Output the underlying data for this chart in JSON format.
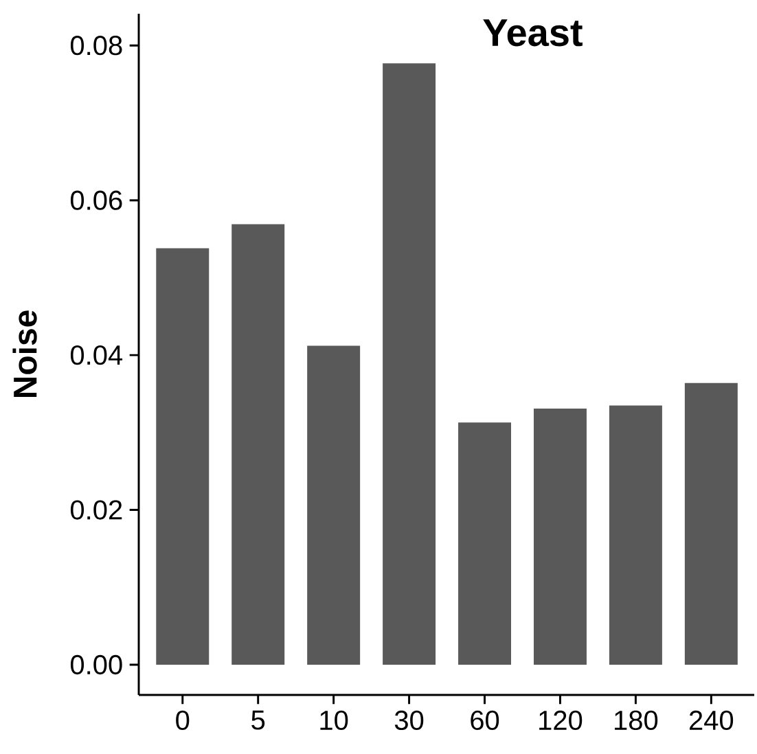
{
  "chart_data": {
    "type": "bar",
    "title": "Yeast",
    "ylabel": "Noise",
    "categories": [
      "0",
      "5",
      "10",
      "30",
      "60",
      "120",
      "180",
      "240"
    ],
    "values": [
      0.0538,
      0.0569,
      0.0412,
      0.0777,
      0.0313,
      0.0331,
      0.0335,
      0.0364
    ],
    "color": "#595959",
    "ylim": [
      -0.0039,
      0.0841
    ],
    "yticks": [
      {
        "value": 0,
        "label": "0.00"
      },
      {
        "value": 0.02,
        "label": "0.02"
      },
      {
        "value": 0.04,
        "label": "0.04"
      },
      {
        "value": 0.06,
        "label": "0.06"
      },
      {
        "value": 0.08,
        "label": "0.08"
      }
    ],
    "grid": false
  }
}
